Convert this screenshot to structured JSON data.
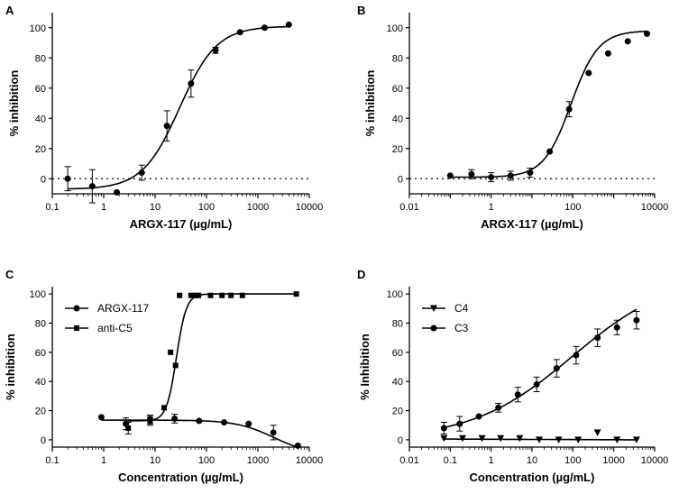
{
  "chart_data": [
    {
      "panel": "A",
      "type": "scatter",
      "xlabel": "ARGX-117 (µg/mL)",
      "ylabel": "% inhibition",
      "xscale": "log",
      "xlim": [
        0.1,
        10000
      ],
      "ylim": [
        -10,
        110
      ],
      "xticks": [
        "0.1",
        "1",
        "10",
        "100",
        "1000",
        "10000"
      ],
      "yticks": [
        "0",
        "20",
        "40",
        "60",
        "80",
        "100"
      ],
      "zero_line": "dotted",
      "series": [
        {
          "marker": "circle",
          "x": [
            0.2,
            0.6,
            1.8,
            5.5,
            17,
            50,
            150,
            450,
            1350,
            4000
          ],
          "y": [
            0,
            -5,
            -9,
            4,
            35,
            63,
            85,
            97,
            100,
            102
          ],
          "err": [
            8,
            11,
            0,
            5,
            10,
            9,
            2,
            0,
            0,
            0
          ],
          "fit": {
            "bottom": -7,
            "top": 101,
            "ec50": 30,
            "hill": 1.2
          }
        }
      ]
    },
    {
      "panel": "B",
      "type": "scatter",
      "xlabel": "ARGX-117 (µg/mL)",
      "ylabel": "% inhibition",
      "xscale": "log",
      "xlim": [
        0.01,
        10000
      ],
      "ylim": [
        -10,
        110
      ],
      "xticks": [
        "0.01",
        "1",
        "100",
        "10000"
      ],
      "yticks": [
        "0",
        "20",
        "40",
        "60",
        "80",
        "100"
      ],
      "zero_line": "dotted",
      "series": [
        {
          "marker": "circle",
          "x": [
            0.1,
            0.33,
            1,
            3,
            9,
            27,
            81,
            243,
            729,
            2200,
            6500
          ],
          "y": [
            2,
            3,
            1,
            2,
            4,
            18,
            46,
            70,
            83,
            91,
            96
          ],
          "err": [
            0,
            3,
            3,
            3,
            3,
            0,
            5,
            0,
            0,
            0,
            0
          ],
          "fit": {
            "bottom": 1,
            "top": 98,
            "ec50": 90,
            "hill": 1.3
          }
        }
      ]
    },
    {
      "panel": "C",
      "type": "scatter",
      "xlabel": "Concentration (µg/mL)",
      "ylabel": "% inhibition",
      "xscale": "log",
      "xlim": [
        0.1,
        10000
      ],
      "ylim": [
        -5,
        105
      ],
      "xticks": [
        "0.1",
        "1",
        "10",
        "100",
        "1000",
        "10000"
      ],
      "yticks": [
        "0",
        "20",
        "40",
        "60",
        "80",
        "100"
      ],
      "legend_position": "top-left",
      "series": [
        {
          "name": "ARGX-117",
          "marker": "circle",
          "x": [
            0.9,
            2.7,
            8,
            24,
            72,
            220,
            660,
            2000,
            6000
          ],
          "y": [
            15.5,
            11,
            14,
            14.5,
            13,
            12,
            11,
            5,
            -4
          ],
          "err": [
            0,
            4,
            3,
            3,
            0,
            0,
            0,
            5,
            0
          ],
          "fit": {
            "bottom": -10,
            "top": 13.5,
            "ec50": 2000,
            "hill": 1.2,
            "decreasing": true
          }
        },
        {
          "name": "anti-C5",
          "marker": "square",
          "x": [
            3,
            8,
            15,
            20,
            25,
            30,
            50,
            60,
            70,
            120,
            200,
            300,
            500,
            5600
          ],
          "y": [
            8,
            13,
            22,
            60,
            51,
            99,
            99,
            99,
            99,
            99,
            99,
            99,
            99,
            100
          ],
          "err": [
            4,
            3,
            0,
            0,
            0,
            0,
            0,
            0,
            0,
            0,
            0,
            0,
            0,
            0
          ],
          "fit": {
            "bottom": 13,
            "top": 100,
            "ec50": 26,
            "hill": 4.5
          }
        }
      ]
    },
    {
      "panel": "D",
      "type": "scatter",
      "xlabel": "Concentration (µg/mL)",
      "ylabel": "% Inhibition",
      "xscale": "log",
      "xlim": [
        0.01,
        10000
      ],
      "ylim": [
        -5,
        105
      ],
      "xticks": [
        "0.01",
        "0.1",
        "1",
        "10",
        "100",
        "1000",
        "10000"
      ],
      "yticks": [
        "0",
        "20",
        "40",
        "60",
        "80",
        "100"
      ],
      "legend_position": "top-left",
      "series": [
        {
          "name": "C4",
          "marker": "triangle-down",
          "x": [
            0.07,
            0.2,
            0.6,
            1.7,
            5,
            15,
            45,
            135,
            400,
            1200,
            3600
          ],
          "y": [
            1,
            1,
            1,
            1,
            1,
            0,
            0,
            0,
            5,
            0,
            0
          ],
          "err": [
            0,
            0,
            0,
            0,
            0,
            0,
            0,
            0,
            0,
            0,
            0
          ],
          "fit": {
            "linear": true,
            "y0": 0.5,
            "y1": 0
          }
        },
        {
          "name": "C3",
          "marker": "circle",
          "x": [
            0.07,
            0.17,
            0.5,
            1.5,
            4.5,
            13,
            40,
            120,
            400,
            1200,
            3600
          ],
          "y": [
            8,
            11,
            16,
            22,
            31,
            38,
            49,
            58,
            70,
            77,
            82
          ],
          "err": [
            4,
            5,
            0,
            3,
            5,
            5,
            6,
            6,
            6,
            5,
            6
          ],
          "fit": {
            "bottom": 0,
            "top": 115,
            "ec50": 100,
            "hill": 0.35
          }
        }
      ]
    }
  ]
}
